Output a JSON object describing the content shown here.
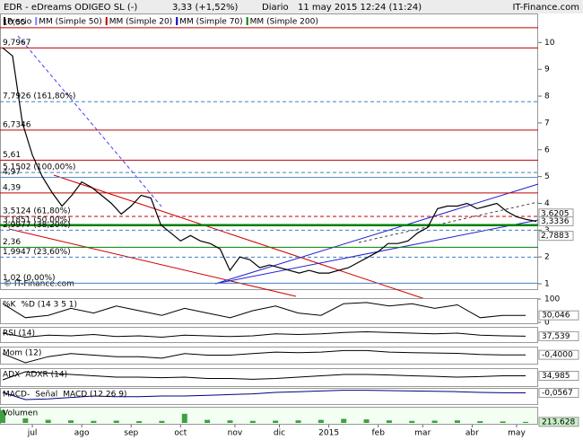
{
  "chart_data": {
    "type": "line",
    "header": {
      "symbol": "EDR - eDreams ODIGEO SL (-)",
      "quote": "3,33 (+1,52%)",
      "period": "Diario",
      "date": "11 may 2015 12:24 (11:24)",
      "brand": "IT-Finance.com"
    },
    "legend": [
      "Precio",
      "MM (Simple 50)",
      "MM (Simple 20)",
      "MM (Simple 70)",
      "MM (Simple 200)"
    ],
    "legend_colors": [
      "#000000",
      "#8080ff",
      "#c00000",
      "#0000c0",
      "#008000"
    ],
    "watermark": "© IT-Finance.com",
    "price": {
      "color": "#000000",
      "values": [
        9.8,
        9.5,
        7.0,
        5.8,
        5.0,
        4.4,
        3.9,
        4.3,
        4.8,
        4.6,
        4.3,
        4.0,
        3.6,
        3.9,
        4.3,
        4.2,
        3.2,
        2.9,
        2.6,
        2.8,
        2.6,
        2.5,
        2.3,
        1.5,
        2.0,
        1.9,
        1.6,
        1.7,
        1.6,
        1.5,
        1.4,
        1.5,
        1.4,
        1.4,
        1.5,
        1.6,
        1.8,
        2.0,
        2.2,
        2.5,
        2.5,
        2.6,
        2.9,
        3.1,
        3.8,
        3.9,
        3.9,
        4.0,
        3.8,
        3.9,
        4.0,
        3.7,
        3.5,
        3.4,
        3.33
      ]
    },
    "ylim": [
      0.8,
      11.05
    ],
    "xlim": [
      0,
      54
    ],
    "yticks": [
      1,
      2,
      3,
      4,
      5,
      6,
      7,
      8,
      9,
      10
    ],
    "xticks": [
      {
        "value": 3,
        "label": "jul"
      },
      {
        "value": 8,
        "label": "ago"
      },
      {
        "value": 13,
        "label": "sep"
      },
      {
        "value": 18,
        "label": "oct"
      },
      {
        "value": 23.5,
        "label": "nov"
      },
      {
        "value": 28,
        "label": "dic"
      },
      {
        "value": 33,
        "label": "2015"
      },
      {
        "value": 38,
        "label": "feb"
      },
      {
        "value": 42.5,
        "label": "mar"
      },
      {
        "value": 47.5,
        "label": "abr"
      },
      {
        "value": 52,
        "label": "may"
      }
    ],
    "levels": [
      {
        "value": 10.55,
        "label": "10,55",
        "color": "#c00000",
        "dash": false
      },
      {
        "value": 9.7967,
        "label": "9,7967",
        "color": "#c00000",
        "dash": false
      },
      {
        "value": 7.7926,
        "label": "7,7926 (161,80%)",
        "color": "#4080c0",
        "dash": true
      },
      {
        "value": 6.7346,
        "label": "6,7346",
        "color": "#c00000",
        "dash": false
      },
      {
        "value": 5.61,
        "label": "5,61",
        "color": "#c00000",
        "dash": false
      },
      {
        "value": 5.1502,
        "label": "5,1502 (100,00%)",
        "color": "#4080c0",
        "dash": true
      },
      {
        "value": 4.97,
        "label": "4,97",
        "color": "#6090c0",
        "dash": false
      },
      {
        "value": 4.39,
        "label": "4,39",
        "color": "#c00000",
        "dash": false
      },
      {
        "value": 3.5124,
        "label": "3,5124 (61,80%)",
        "color": "#c00000",
        "dash": true
      },
      {
        "value": 3.1851,
        "label": "3,1851 (50,00%)",
        "color": "#008000",
        "dash": false
      },
      {
        "value": 2.9977,
        "label": "2,9977 (38,20%)",
        "color": "#4080c0",
        "dash": true
      },
      {
        "value": 2.36,
        "label": "2,36",
        "color": "#008000",
        "dash": false
      },
      {
        "value": 1.9947,
        "label": "1,9947 (23,60%)",
        "color": "#4080c0",
        "dash": true
      },
      {
        "value": 1.02,
        "label": "1,02 (0,00%)",
        "color": "#4080c0",
        "dash": false
      }
    ],
    "right_labels": [
      {
        "value": 3.6205,
        "label": "3,6205"
      },
      {
        "value": 3.3336,
        "label": "3,3336"
      },
      {
        "value": 2.7883,
        "label": "2,7883"
      }
    ],
    "indicators": [
      {
        "names": [
          "%K",
          "%D (14 3 5 1)"
        ],
        "kind": "line",
        "color": "#000000",
        "ylim": [
          0,
          100
        ],
        "yticks": [
          0,
          100
        ],
        "last": {
          "value": 30.046,
          "label": "30,046"
        },
        "values": [
          80,
          20,
          30,
          60,
          40,
          70,
          50,
          30,
          60,
          40,
          20,
          50,
          70,
          40,
          30,
          80,
          85,
          70,
          80,
          60,
          75,
          20,
          30,
          30
        ]
      },
      {
        "names": [
          "RSI (14)"
        ],
        "kind": "line",
        "color": "#000000",
        "ylim": [
          0,
          100
        ],
        "last": {
          "value": 37.539,
          "label": "37,539"
        },
        "values": [
          60,
          30,
          45,
          40,
          50,
          35,
          40,
          30,
          45,
          40,
          35,
          40,
          55,
          50,
          55,
          65,
          70,
          65,
          60,
          55,
          60,
          45,
          40,
          37.5
        ]
      },
      {
        "names": [
          "Mom (12)"
        ],
        "kind": "line",
        "color": "#000000",
        "ylim": [
          -3,
          2
        ],
        "last": {
          "value": -0.4,
          "label": "-0,4000"
        },
        "values": [
          0,
          -3,
          -1,
          0,
          -0.5,
          -1,
          -1,
          -1.5,
          0,
          -0.5,
          -0.5,
          0,
          0.5,
          0.3,
          0.5,
          1,
          1,
          0.5,
          0.3,
          0.2,
          0.1,
          -0.3,
          -0.4,
          -0.4
        ]
      },
      {
        "names": [
          "ADX",
          "ADXR (14)"
        ],
        "kind": "line",
        "color": "#000000",
        "ylim": [
          0,
          60
        ],
        "last": {
          "value": 34.985,
          "label": "34,985"
        },
        "values": [
          20,
          50,
          45,
          40,
          35,
          30,
          30,
          28,
          30,
          25,
          25,
          22,
          25,
          30,
          35,
          40,
          40,
          38,
          35,
          33,
          30,
          32,
          35,
          35
        ]
      },
      {
        "names": [
          "MACD-",
          "Señal",
          "MACD (12 26 9)"
        ],
        "kind": "line",
        "color": "#000080",
        "ylim": [
          -1.5,
          0.5
        ],
        "last": {
          "value": -0.0567,
          "label": "-0,0567"
        },
        "values": [
          0,
          -1,
          -0.9,
          -0.7,
          -0.5,
          -0.6,
          -0.6,
          -0.5,
          -0.5,
          -0.4,
          -0.3,
          -0.2,
          0,
          0.1,
          0.2,
          0.3,
          0.3,
          0.25,
          0.2,
          0.15,
          0.1,
          0,
          -0.05,
          -0.06
        ]
      },
      {
        "names": [
          "Volumen"
        ],
        "kind": "bar",
        "color": "#40a040",
        "ylim": [
          0,
          3000000
        ],
        "last": {
          "value": 213628,
          "label": "213.628"
        },
        "values": [
          2500000,
          900000,
          600000,
          500000,
          400000,
          450000,
          350000,
          400000,
          1800000,
          600000,
          500000,
          400000,
          450000,
          500000,
          600000,
          800000,
          700000,
          500000,
          400000,
          450000,
          500000,
          350000,
          300000,
          213628
        ]
      }
    ]
  }
}
